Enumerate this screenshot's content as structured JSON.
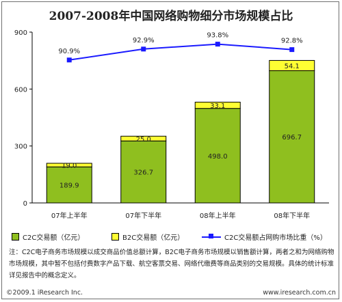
{
  "chart_data": {
    "type": "bar",
    "title": "2007-2008年中国网络购物细分市场规模占比",
    "categories": [
      "07年上半年",
      "07年下半年",
      "08年上半年",
      "08年下半年"
    ],
    "series": [
      {
        "name": "C2C交易额（亿元）",
        "values": [
          189.9,
          326.7,
          498.0,
          696.7
        ],
        "color": "#8fbf1f"
      },
      {
        "name": "B2C交易额（亿元）",
        "values": [
          19.0,
          25.0,
          33.1,
          54.1
        ],
        "color": "#ffff33"
      }
    ],
    "line_series": {
      "name": "C2C交易额占网购市场比重（%）",
      "values": [
        90.9,
        92.9,
        93.8,
        92.8
      ],
      "labels": [
        "90.9%",
        "92.9%",
        "93.8%",
        "92.8%"
      ],
      "color": "#1a1aff"
    },
    "ylim": [
      0,
      900
    ],
    "yticks": [
      0,
      300,
      600,
      900
    ],
    "stacked": true,
    "legend_position": "bottom"
  },
  "legend": {
    "c2c": "C2C交易额（亿元）",
    "b2c": "B2C交易额（亿元）",
    "ratio": "C2C交易额占网购市场比重（%）"
  },
  "note": "注：C2C电子商务市场规模以成交商品价值总额计算，B2C电子商务市场规模以销售额计算，两者之和为网络购物市场规模，其中暂不包括付费数字产品下载、航空客票交易、网络代缴费等商品类别的交易规模。具体的统计标准详见报告中的概念定义。",
  "footer": {
    "copyright": "©2009.1 iResearch Inc.",
    "website": "www.iresearch.com.cn"
  }
}
